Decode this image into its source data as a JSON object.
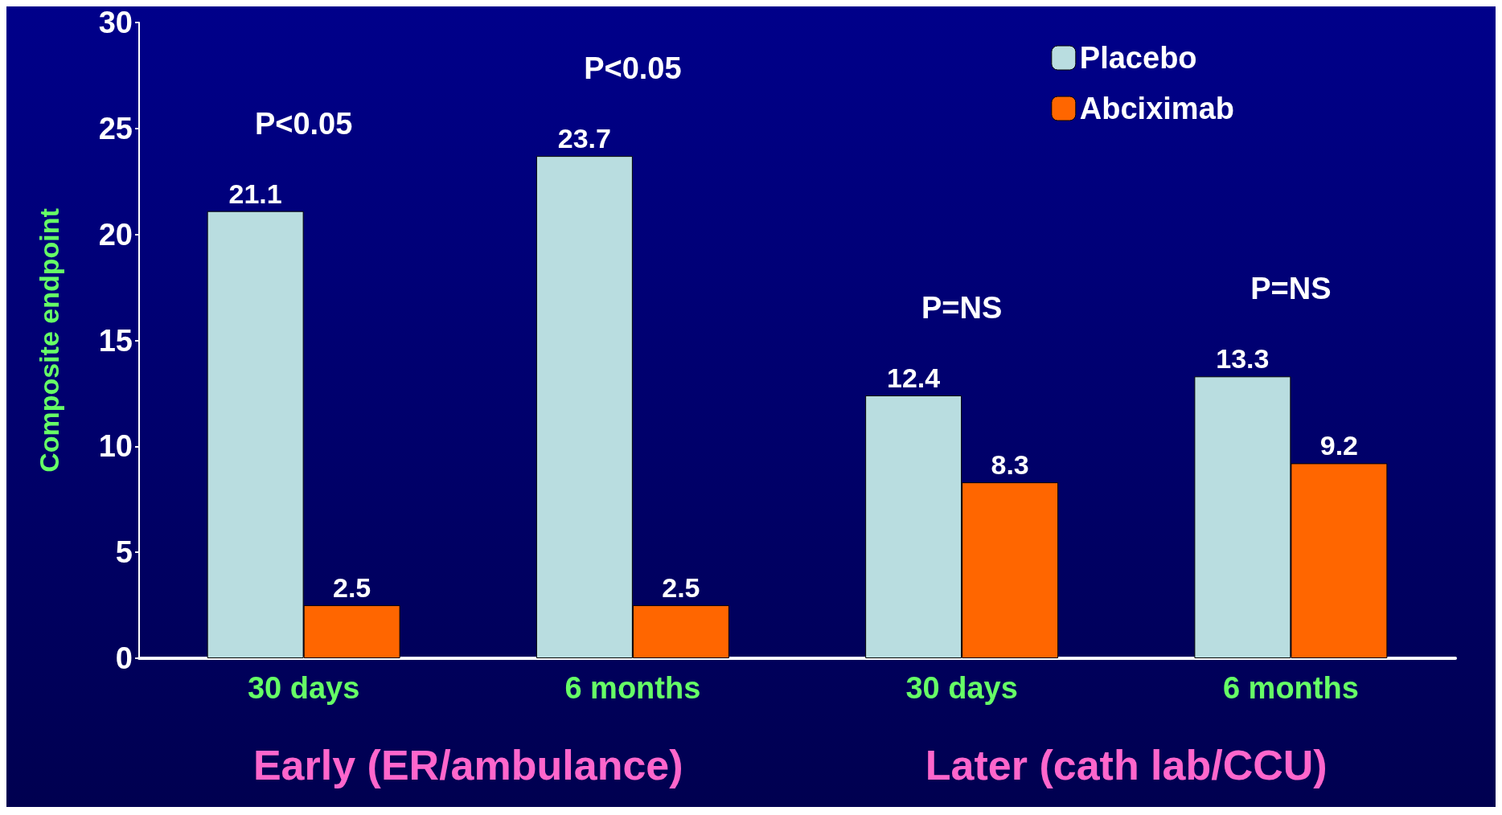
{
  "chart_data": {
    "type": "bar",
    "ylabel": "Composite endpoint",
    "categories": [
      "30 days",
      "6 months",
      "30 days",
      "6 months"
    ],
    "series": [
      {
        "name": "Placebo",
        "color": "#b9dde0",
        "values": [
          21.1,
          23.7,
          12.4,
          13.3
        ]
      },
      {
        "name": "Abciximab",
        "color": "#ff6600",
        "values": [
          2.5,
          2.5,
          8.3,
          9.2
        ]
      }
    ],
    "ylim": [
      0,
      30
    ],
    "yticks": [
      0,
      5,
      10,
      15,
      20,
      25,
      30
    ],
    "grid": false,
    "legend": "top right",
    "data_labels": true,
    "annotations": [
      "P<0.05",
      "P<0.05",
      "P=NS",
      "P=NS",
      "Early (ER/ambulance)",
      "Later (cath lab/CCU)"
    ]
  }
}
